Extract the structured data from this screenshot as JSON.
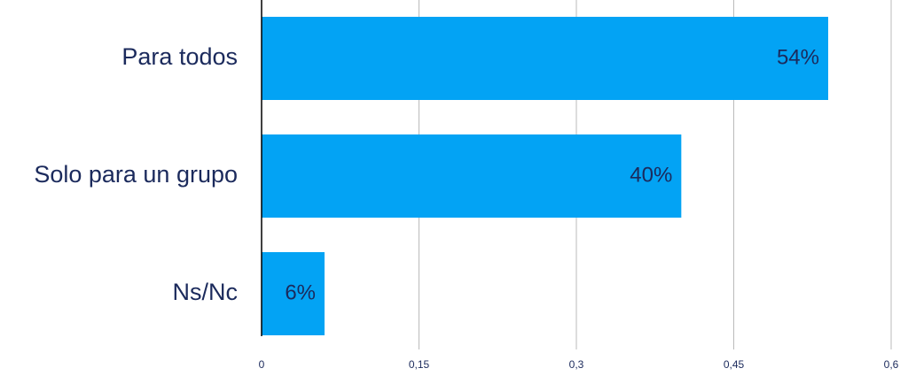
{
  "chart_data": {
    "type": "bar",
    "orientation": "horizontal",
    "categories": [
      "Para todos",
      "Solo para un grupo",
      "Ns/Nc"
    ],
    "values": [
      0.54,
      0.4,
      0.06
    ],
    "value_labels": [
      "54%",
      "40%",
      "6%"
    ],
    "color": "#03a3f4",
    "xlim": [
      0,
      0.6
    ],
    "xticks": [
      0,
      {
        "value": 0.15,
        "label": "0,15"
      },
      {
        "value": 0.3,
        "label": "0,3"
      },
      {
        "value": 0.45,
        "label": "0,45"
      },
      {
        "value": 0.6,
        "label": "0,6"
      }
    ],
    "grid": true
  }
}
